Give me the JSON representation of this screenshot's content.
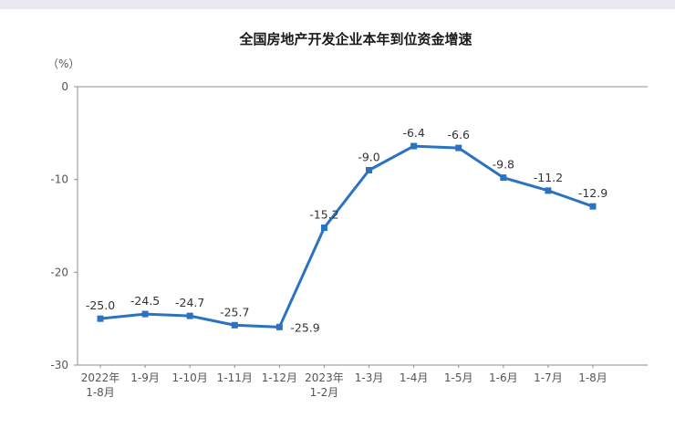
{
  "page": {
    "title": "全国房地产开发企业本年到位资金增速",
    "unit_label": "（%）"
  },
  "chart_data": {
    "type": "line",
    "title": "全国房地产开发企业本年到位资金增速",
    "ylabel": "（%）",
    "xlabel": "",
    "ylim": [
      -30,
      0
    ],
    "yticks": [
      0,
      -10,
      -20,
      -30
    ],
    "grid": false,
    "legend_position": "none",
    "line_color": "#2973c2",
    "axis_color": "#8c8c8c",
    "categories": [
      "2022年\n1-8月",
      "1-9月",
      "1-10月",
      "1-11月",
      "1-12月",
      "2023年\n1-2月",
      "1-3月",
      "1-4月",
      "1-5月",
      "1-6月",
      "1-7月",
      "1-8月"
    ],
    "values": [
      -25.0,
      -24.5,
      -24.7,
      -25.7,
      -25.9,
      -15.2,
      -9.0,
      -6.4,
      -6.6,
      -9.8,
      -11.2,
      -12.9
    ],
    "value_labels": [
      "-25.0",
      "-24.5",
      "-24.7",
      "-25.7",
      "-25.9",
      "-15.2",
      "-9.0",
      "-6.4",
      "-6.6",
      "-9.8",
      "-11.2",
      "-12.9"
    ],
    "label_placement": [
      "above",
      "above",
      "above",
      "above",
      "right",
      "above",
      "above",
      "above",
      "above",
      "above",
      "above",
      "above"
    ]
  }
}
